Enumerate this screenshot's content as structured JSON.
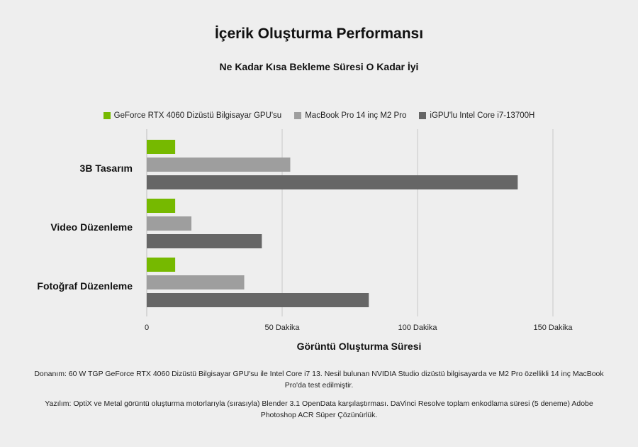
{
  "title": "İçerik Oluşturma Performansı",
  "subtitle": "Ne Kadar Kısa Bekleme Süresi O Kadar İyi",
  "footnotes": {
    "hardware": "Donanım: 60 W TGP GeForce RTX 4060 Dizüstü Bilgisayar GPU'su ile Intel Core i7 13. Nesil bulunan NVIDIA Studio dizüstü bilgisayarda ve M2 Pro özellikli 14 inç MacBook Pro'da test edilmiştir.",
    "software": "Yazılım: OptiX ve Metal görüntü oluşturma motorlarıyla (sırasıyla) Blender 3.1 OpenData karşılaştırması. DaVinci Resolve toplam enkodlama süresi (5 deneme) Adobe Photoshop ACR Süper Çözünürlük."
  },
  "chart_data": {
    "type": "bar",
    "orientation": "horizontal",
    "categories": [
      "3B Tasarım",
      "Video Düzenleme",
      "Fotoğraf Düzenleme"
    ],
    "series": [
      {
        "name": "GeForce RTX 4060 Dizüstü Bilgisayar GPU'su",
        "color": "#76b900",
        "values": [
          10.5,
          10.5,
          10.5
        ]
      },
      {
        "name": "MacBook Pro 14 inç M2 Pro",
        "color": "#9e9e9e",
        "values": [
          53,
          16.5,
          36
        ]
      },
      {
        "name": "iGPU'lu Intel Core i7-13700H",
        "color": "#666666",
        "values": [
          137,
          42.5,
          82
        ]
      }
    ],
    "xlabel": "Görüntü Oluşturma Süresi",
    "ylabel": "",
    "xlim": [
      0,
      150
    ],
    "xticks": [
      {
        "value": 0,
        "label": "0"
      },
      {
        "value": 50,
        "label": "50 Dakika"
      },
      {
        "value": 100,
        "label": "100 Dakika"
      },
      {
        "value": 150,
        "label": "150 Dakika"
      }
    ],
    "grid": true,
    "legend_position": "top"
  }
}
